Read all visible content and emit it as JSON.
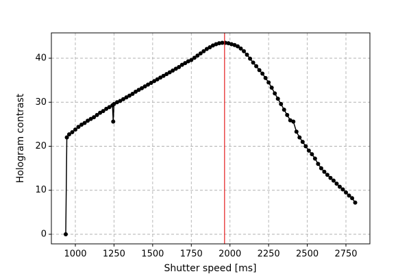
{
  "chart_data": {
    "type": "line",
    "x_label": "Shutter speed [ms]",
    "y_label": "Hologram contrast",
    "xlim": [
      845,
      2905
    ],
    "ylim": [
      -2.18,
      45.76
    ],
    "xticks": [
      1000,
      1250,
      1500,
      1750,
      2000,
      2250,
      2500,
      2750
    ],
    "yticks": [
      0,
      10,
      20,
      30,
      40
    ],
    "grid": true,
    "vline": {
      "x": 1965,
      "color": "#e41a1c"
    },
    "series": [
      {
        "color": "#000000",
        "x": [
          938,
          945,
          960,
          980,
          1000,
          1020,
          1040,
          1060,
          1080,
          1100,
          1120,
          1140,
          1160,
          1180,
          1200,
          1220,
          1240,
          1245,
          1250,
          1270,
          1290,
          1310,
          1330,
          1350,
          1370,
          1390,
          1410,
          1430,
          1450,
          1470,
          1490,
          1510,
          1530,
          1550,
          1570,
          1590,
          1610,
          1630,
          1650,
          1670,
          1690,
          1710,
          1730,
          1750,
          1770,
          1790,
          1810,
          1830,
          1850,
          1870,
          1890,
          1910,
          1930,
          1950,
          1970,
          1990,
          2010,
          2030,
          2050,
          2070,
          2090,
          2110,
          2130,
          2150,
          2170,
          2190,
          2210,
          2230,
          2250,
          2270,
          2290,
          2310,
          2330,
          2350,
          2370,
          2390,
          2410,
          2430,
          2450,
          2470,
          2490,
          2510,
          2530,
          2550,
          2570,
          2590,
          2610,
          2630,
          2650,
          2670,
          2690,
          2710,
          2730,
          2750,
          2770,
          2790,
          2810
        ],
        "values": [
          0,
          22.0,
          22.7,
          23.2,
          23.8,
          24.4,
          24.9,
          25.3,
          25.8,
          26.2,
          26.6,
          27.1,
          27.6,
          28.0,
          28.5,
          28.9,
          29.3,
          25.6,
          29.6,
          30.0,
          30.3,
          30.7,
          31.1,
          31.5,
          31.9,
          32.4,
          32.8,
          33.2,
          33.6,
          34.0,
          34.4,
          34.8,
          35.2,
          35.6,
          36.0,
          36.4,
          36.8,
          37.2,
          37.6,
          38.0,
          38.5,
          38.9,
          39.3,
          39.6,
          40.1,
          40.6,
          41.1,
          41.6,
          42.1,
          42.5,
          42.9,
          43.2,
          43.4,
          43.5,
          43.5,
          43.4,
          43.2,
          43.0,
          42.7,
          42.2,
          41.6,
          40.8,
          39.9,
          39.0,
          38.2,
          37.3,
          36.5,
          35.5,
          34.5,
          33.3,
          32.0,
          30.8,
          29.6,
          28.3,
          27.1,
          25.9,
          25.6,
          23.3,
          22.0,
          21.0,
          20.0,
          19.0,
          18.2,
          17.2,
          16.0,
          15.0,
          14.2,
          13.5,
          12.8,
          12.2,
          11.5,
          10.8,
          10.2,
          9.5,
          8.8,
          8.2,
          7.2
        ]
      }
    ]
  }
}
